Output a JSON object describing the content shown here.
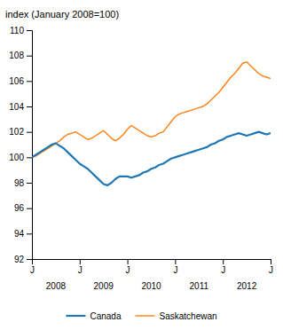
{
  "chart_data": {
    "type": "line",
    "title": "index (January 2008=100)",
    "x": [
      0,
      1,
      2,
      3,
      4,
      5,
      6,
      7,
      8,
      9,
      10,
      11,
      12,
      13,
      14,
      15,
      16,
      17,
      18,
      19,
      20,
      21,
      22,
      23,
      24,
      25,
      26,
      27,
      28,
      29,
      30,
      31,
      32,
      33,
      34,
      35,
      36,
      37,
      38,
      39,
      40,
      41,
      42,
      43,
      44,
      45,
      46,
      47,
      48,
      49,
      50,
      51,
      52,
      53,
      54,
      55,
      56,
      57,
      58,
      59,
      60
    ],
    "series": [
      {
        "name": "Canada",
        "values": [
          100.0,
          100.2,
          100.4,
          100.6,
          100.8,
          101.0,
          101.1,
          100.9,
          100.7,
          100.4,
          100.1,
          99.8,
          99.5,
          99.3,
          99.1,
          98.8,
          98.5,
          98.2,
          97.9,
          97.8,
          98.0,
          98.3,
          98.5,
          98.5,
          98.5,
          98.4,
          98.5,
          98.6,
          98.8,
          98.9,
          99.1,
          99.2,
          99.4,
          99.5,
          99.7,
          99.9,
          100.0,
          100.1,
          100.2,
          100.3,
          100.4,
          100.5,
          100.6,
          100.7,
          100.8,
          101.0,
          101.1,
          101.3,
          101.4,
          101.6,
          101.7,
          101.8,
          101.9,
          101.8,
          101.7,
          101.8,
          101.9,
          102.0,
          101.9,
          101.8,
          101.9
        ]
      },
      {
        "name": "Saskatchewan",
        "values": [
          100.0,
          100.1,
          100.3,
          100.5,
          100.7,
          100.9,
          101.1,
          101.3,
          101.6,
          101.8,
          101.9,
          102.0,
          101.8,
          101.6,
          101.4,
          101.5,
          101.7,
          101.9,
          102.1,
          101.8,
          101.5,
          101.3,
          101.5,
          101.8,
          102.2,
          102.5,
          102.3,
          102.1,
          101.9,
          101.7,
          101.6,
          101.7,
          101.9,
          102.0,
          102.4,
          102.8,
          103.2,
          103.4,
          103.5,
          103.6,
          103.7,
          103.8,
          103.9,
          104.0,
          104.2,
          104.5,
          104.8,
          105.1,
          105.5,
          105.9,
          106.3,
          106.6,
          107.0,
          107.4,
          107.5,
          107.2,
          106.9,
          106.6,
          106.4,
          106.3,
          106.2
        ]
      }
    ],
    "xlim": [
      0,
      60
    ],
    "xticks": [
      {
        "value": 0,
        "label": "J"
      },
      {
        "value": 12,
        "label": "J"
      },
      {
        "value": 24,
        "label": "J"
      },
      {
        "value": 36,
        "label": "J"
      },
      {
        "value": 48,
        "label": "J"
      },
      {
        "value": 60,
        "label": "J"
      }
    ],
    "ylim": [
      92,
      110
    ],
    "yticks": [
      92,
      94,
      96,
      98,
      100,
      102,
      104,
      106,
      108,
      110
    ],
    "annotations": [
      {
        "text": "2008",
        "x": 6
      },
      {
        "text": "2009",
        "x": 18
      },
      {
        "text": "2010",
        "x": 30
      },
      {
        "text": "2011",
        "x": 42
      },
      {
        "text": "2012",
        "x": 54
      }
    ],
    "grid": false,
    "legend": "bottom"
  }
}
